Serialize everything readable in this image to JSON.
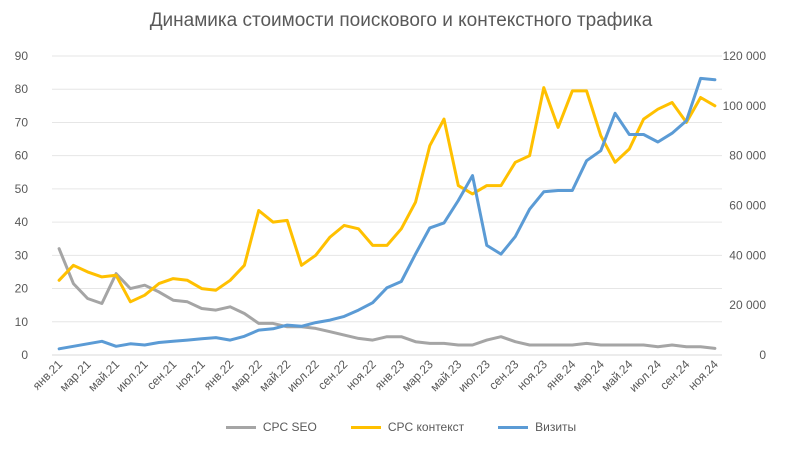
{
  "chart_data": {
    "type": "line",
    "title": "Динамика стоимости поискового и контекстного трафика",
    "x": [
      "янв.21",
      "фев.21",
      "мар.21",
      "апр.21",
      "май.21",
      "июн.21",
      "июл.21",
      "авг.21",
      "сен.21",
      "окт.21",
      "ноя.21",
      "дек.21",
      "янв.22",
      "фев.22",
      "мар.22",
      "апр.22",
      "май.22",
      "июн.22",
      "июл.22",
      "авг.22",
      "сен.22",
      "окт.22",
      "ноя.22",
      "дек.22",
      "янв.23",
      "фев.23",
      "мар.23",
      "апр.23",
      "май.23",
      "июн.23",
      "июл.23",
      "авг.23",
      "сен.23",
      "окт.23",
      "ноя.23",
      "дек.23",
      "янв.24",
      "фев.24",
      "мар.24",
      "апр.24",
      "май.24",
      "июн.24",
      "июл.24",
      "авг.24",
      "сен.24",
      "окт.24",
      "ноя.24"
    ],
    "x_tick_labels": [
      "янв.21",
      "мар.21",
      "май.21",
      "июл.21",
      "сен.21",
      "ноя.21",
      "янв.22",
      "мар.22",
      "май.22",
      "июл.22",
      "сен.22",
      "ноя.22",
      "янв.23",
      "мар.23",
      "май.23",
      "июл.23",
      "сен.23",
      "ноя.23",
      "янв.24",
      "мар.24",
      "май.24",
      "июл.24",
      "сен.24",
      "ноя.24"
    ],
    "y_left": {
      "ylim": [
        0,
        90
      ],
      "ticks": [
        "0",
        "10",
        "20",
        "30",
        "40",
        "50",
        "60",
        "70",
        "80",
        "90"
      ]
    },
    "y_right": {
      "ylim": [
        0,
        120000
      ],
      "ticks": [
        "0",
        "20 000",
        "40 000",
        "60 000",
        "80 000",
        "100 000",
        "120 000"
      ]
    },
    "series": [
      {
        "name": "CPC SEO",
        "axis": "left",
        "color": "#a5a5a5",
        "values": [
          32,
          21.5,
          17,
          15.5,
          24.5,
          20,
          21,
          19,
          16.5,
          16,
          14,
          13.5,
          14.5,
          12.5,
          9.5,
          9.5,
          8.5,
          8.5,
          8,
          7,
          6,
          5,
          4.5,
          5.5,
          5.5,
          4,
          3.5,
          3.5,
          3,
          3,
          4.5,
          5.5,
          4,
          3,
          3,
          3,
          3,
          3.5,
          3,
          3,
          3,
          3,
          2.5,
          3,
          2.5,
          2.5,
          2
        ]
      },
      {
        "name": "CPC контекст",
        "axis": "left",
        "color": "#ffc000",
        "values": [
          22.5,
          27,
          25,
          23.5,
          24,
          16,
          18,
          21.5,
          23,
          22.5,
          20,
          19.5,
          22.5,
          27,
          43.5,
          40,
          40.5,
          27,
          30,
          35.5,
          39,
          38,
          33,
          33,
          38,
          46,
          63,
          71,
          51,
          48.5,
          51,
          51,
          58,
          60,
          80.5,
          68.5,
          79.5,
          79.5,
          66,
          58,
          62,
          71,
          74,
          76,
          70,
          77.5,
          75
        ]
      },
      {
        "name": "Визиты",
        "axis": "right",
        "color": "#5b9bd5",
        "values": [
          2500,
          3500,
          4500,
          5500,
          3500,
          4500,
          4000,
          5000,
          5500,
          6000,
          6500,
          7000,
          6000,
          7500,
          10000,
          10500,
          12000,
          11500,
          13000,
          14000,
          15500,
          18000,
          21000,
          27000,
          29500,
          40500,
          51000,
          53000,
          62000,
          72000,
          44000,
          40500,
          47500,
          58500,
          65500,
          66000,
          66000,
          78000,
          82000,
          97000,
          88500,
          88500,
          85500,
          89000,
          94000,
          111000,
          110500
        ]
      }
    ]
  }
}
